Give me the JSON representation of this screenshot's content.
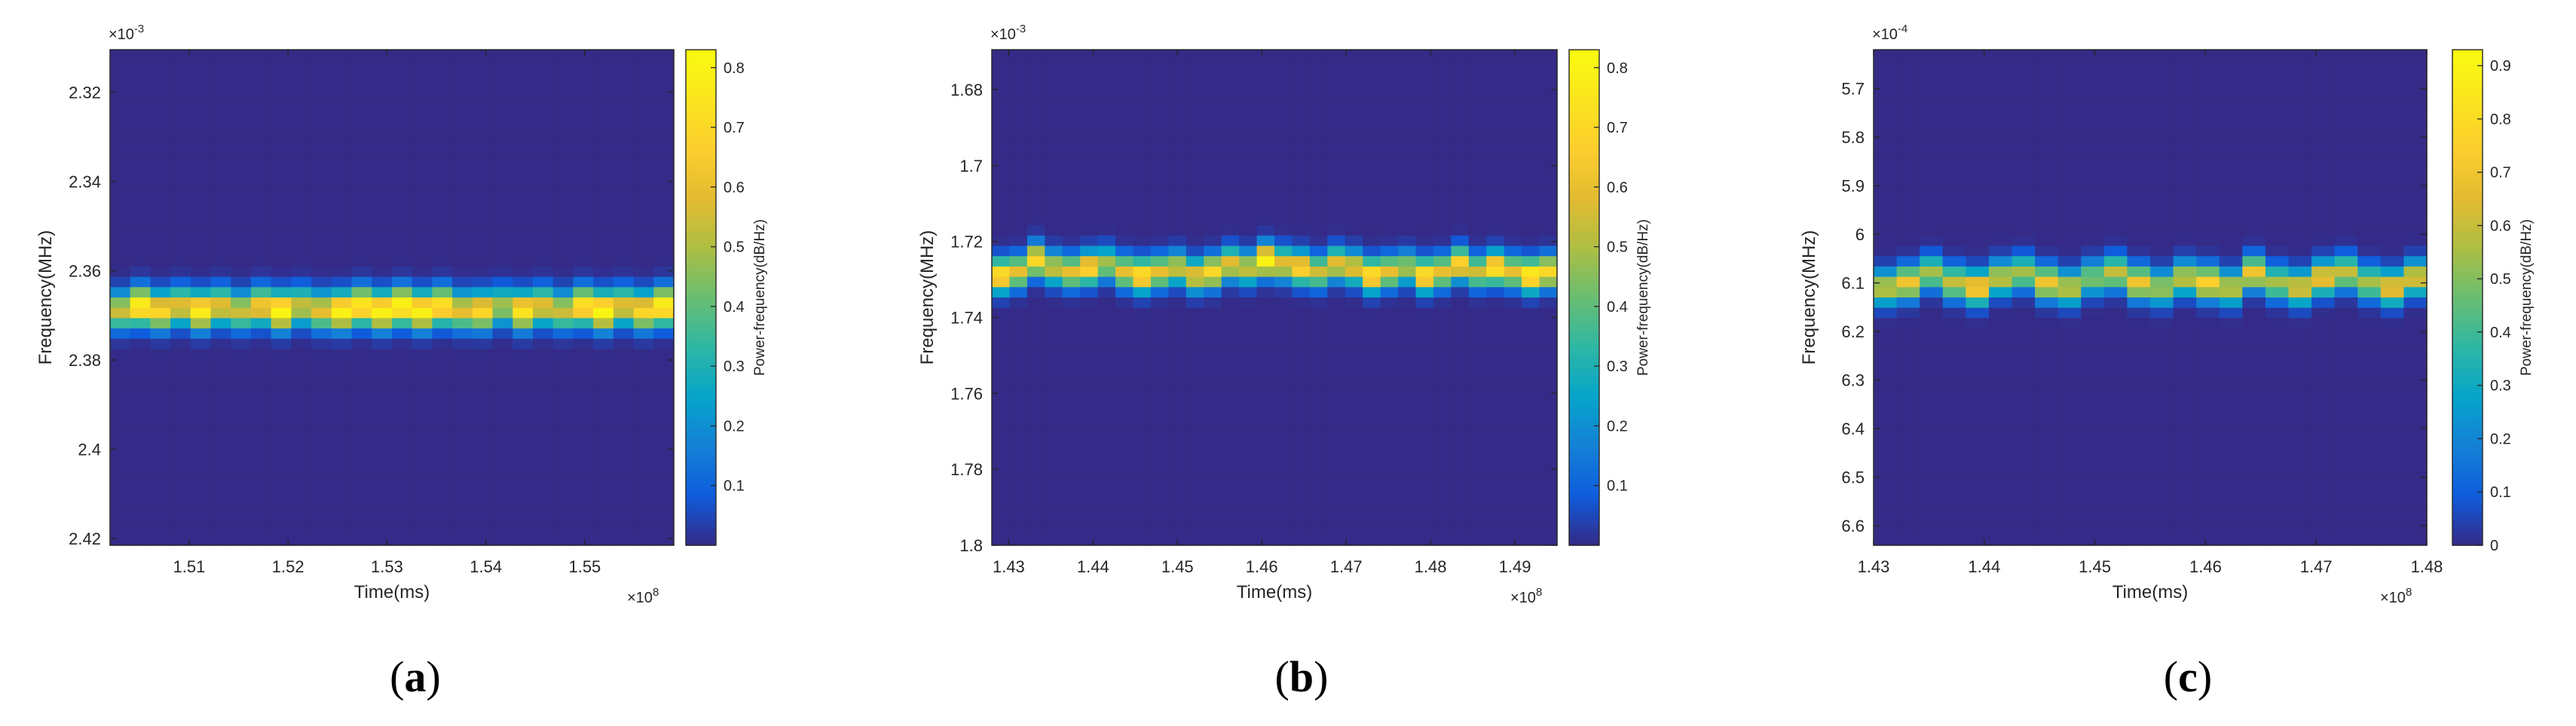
{
  "figure": {
    "panels": [
      {
        "label_open": "(",
        "label_letter": "a",
        "label_close": ")"
      },
      {
        "label_open": "(",
        "label_letter": "b",
        "label_close": ")"
      },
      {
        "label_open": "(",
        "label_letter": "c",
        "label_close": ")"
      }
    ]
  },
  "chart_data": [
    {
      "type": "heatmap",
      "xlabel": "Time(ms)",
      "ylabel": "Frequency(MHz)",
      "x_exponent": "×10",
      "x_exponent_power": "8",
      "y_exponent": "×10",
      "y_exponent_power": "-3",
      "xlim": [
        1.502,
        1.559
      ],
      "ylim": [
        2.3105,
        2.4215
      ],
      "y_reversed": true,
      "xticks": [
        "1.51",
        "1.52",
        "1.53",
        "1.54",
        "1.55"
      ],
      "xtick_values": [
        1.51,
        1.52,
        1.53,
        1.54,
        1.55
      ],
      "yticks": [
        "2.32",
        "2.34",
        "2.36",
        "2.38",
        "2.4",
        "2.42"
      ],
      "ytick_values": [
        2.32,
        2.34,
        2.36,
        2.38,
        2.4,
        2.42
      ],
      "colorbar_label": "Power-frequency(dB/Hz)",
      "colorbar_ticks": [
        "0.1",
        "0.2",
        "0.3",
        "0.4",
        "0.5",
        "0.6",
        "0.7",
        "0.8"
      ],
      "colorbar_tick_values": [
        0.1,
        0.2,
        0.3,
        0.4,
        0.5,
        0.6,
        0.7,
        0.8
      ],
      "colorbar_range": [
        0,
        0.83
      ],
      "ridge_center": [
        2.369,
        2.368,
        2.369,
        2.368,
        2.369,
        2.368,
        2.369,
        2.368,
        2.369,
        2.368,
        2.369,
        2.369,
        2.368,
        2.369,
        2.368,
        2.369,
        2.368,
        2.369,
        2.369,
        2.368,
        2.369,
        2.368,
        2.369,
        2.368,
        2.369,
        2.368,
        2.369,
        2.368
      ],
      "ridge_peak": [
        0.55,
        0.8,
        0.7,
        0.6,
        0.78,
        0.6,
        0.55,
        0.65,
        0.82,
        0.55,
        0.6,
        0.8,
        0.78,
        0.8,
        0.82,
        0.8,
        0.75,
        0.6,
        0.7,
        0.5,
        0.75,
        0.6,
        0.55,
        0.75,
        0.82,
        0.6,
        0.7,
        0.8
      ],
      "ridge_width": 0.006,
      "colormap": "parula"
    },
    {
      "type": "heatmap",
      "xlabel": "Time(ms)",
      "ylabel": "Frequency(MHz)",
      "x_exponent": "×10",
      "x_exponent_power": "8",
      "y_exponent": "×10",
      "y_exponent_power": "-3",
      "xlim": [
        1.428,
        1.495
      ],
      "ylim": [
        1.6695,
        1.8
      ],
      "y_reversed": true,
      "xticks": [
        "1.43",
        "1.44",
        "1.45",
        "1.46",
        "1.47",
        "1.48",
        "1.49"
      ],
      "xtick_values": [
        1.43,
        1.44,
        1.45,
        1.46,
        1.47,
        1.48,
        1.49
      ],
      "yticks": [
        "1.68",
        "1.7",
        "1.72",
        "1.74",
        "1.76",
        "1.78",
        "1.8"
      ],
      "ytick_values": [
        1.68,
        1.7,
        1.72,
        1.74,
        1.76,
        1.78,
        1.8
      ],
      "colorbar_label": "Power-frequency(dB/Hz)",
      "colorbar_ticks": [
        "0.1",
        "0.2",
        "0.3",
        "0.4",
        "0.5",
        "0.6",
        "0.7",
        "0.8"
      ],
      "colorbar_tick_values": [
        0.1,
        0.2,
        0.3,
        0.4,
        0.5,
        0.6,
        0.7,
        0.8
      ],
      "colorbar_range": [
        0,
        0.83
      ],
      "ridge_center": [
        1.729,
        1.728,
        1.725,
        1.727,
        1.728,
        1.727,
        1.726,
        1.728,
        1.729,
        1.728,
        1.727,
        1.729,
        1.728,
        1.726,
        1.727,
        1.725,
        1.726,
        1.727,
        1.728,
        1.726,
        1.727,
        1.729,
        1.728,
        1.727,
        1.729,
        1.728,
        1.726,
        1.728,
        1.727,
        1.728,
        1.729,
        1.728
      ],
      "ridge_peak": [
        0.75,
        0.6,
        0.7,
        0.55,
        0.6,
        0.7,
        0.5,
        0.6,
        0.75,
        0.6,
        0.55,
        0.6,
        0.7,
        0.6,
        0.55,
        0.8,
        0.6,
        0.7,
        0.55,
        0.6,
        0.6,
        0.75,
        0.6,
        0.5,
        0.75,
        0.6,
        0.7,
        0.55,
        0.75,
        0.6,
        0.8,
        0.7
      ],
      "ridge_width": 0.0062,
      "colormap": "parula"
    },
    {
      "type": "heatmap",
      "xlabel": "Time(ms)",
      "ylabel": "Frequency(MHz)",
      "x_exponent": "×10",
      "x_exponent_power": "8",
      "y_exponent": "×10",
      "y_exponent_power": "-4",
      "xlim": [
        1.43,
        1.48
      ],
      "ylim": [
        5.62,
        6.64
      ],
      "y_reversed": true,
      "xticks": [
        "1.43",
        "1.44",
        "1.45",
        "1.46",
        "1.47",
        "1.48"
      ],
      "xtick_values": [
        1.43,
        1.44,
        1.45,
        1.46,
        1.47,
        1.48
      ],
      "yticks": [
        "5.7",
        "5.8",
        "5.9",
        "6",
        "6.1",
        "6.2",
        "6.3",
        "6.4",
        "6.5",
        "6.6"
      ],
      "ytick_values": [
        5.7,
        5.8,
        5.9,
        6.0,
        6.1,
        6.2,
        6.3,
        6.4,
        6.5,
        6.6
      ],
      "colorbar_label": "Power-frequency(dB/Hz)",
      "colorbar_ticks": [
        "0",
        "0.1",
        "0.2",
        "0.3",
        "0.4",
        "0.5",
        "0.6",
        "0.7",
        "0.8",
        "0.9"
      ],
      "colorbar_tick_values": [
        0,
        0.1,
        0.2,
        0.3,
        0.4,
        0.5,
        0.6,
        0.7,
        0.8,
        0.9
      ],
      "colorbar_range": [
        0,
        0.93
      ],
      "ridge_center": [
        6.11,
        6.1,
        6.08,
        6.1,
        6.11,
        6.09,
        6.08,
        6.1,
        6.11,
        6.09,
        6.08,
        6.1,
        6.11,
        6.09,
        6.1,
        6.11,
        6.08,
        6.1,
        6.11,
        6.09,
        6.08,
        6.1,
        6.11,
        6.09
      ],
      "ridge_peak": [
        0.6,
        0.7,
        0.55,
        0.6,
        0.75,
        0.6,
        0.55,
        0.7,
        0.6,
        0.5,
        0.6,
        0.7,
        0.55,
        0.6,
        0.75,
        0.6,
        0.7,
        0.55,
        0.65,
        0.7,
        0.6,
        0.55,
        0.7,
        0.65
      ],
      "ridge_width": 0.05,
      "colormap": "parula"
    }
  ]
}
